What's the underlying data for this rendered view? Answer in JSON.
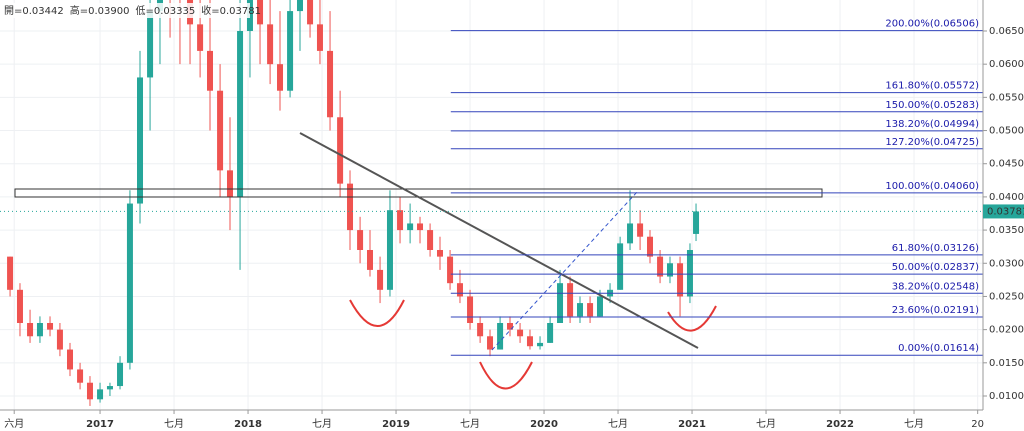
{
  "chart_data": {
    "type": "candlestick",
    "header": [
      "開=0.03442",
      "高=0.03900",
      "低=0.03335",
      "收=0.03781"
    ],
    "up_color": "#26a69a",
    "down_color": "#ef5350",
    "xlim": [
      2016.324,
      2022.966
    ],
    "xticks": [
      {
        "value": 2016.42,
        "label": "六月"
      },
      2017,
      {
        "value": 2017.5,
        "label": "七月"
      },
      2018,
      {
        "value": 2018.5,
        "label": "七月"
      },
      2019,
      {
        "value": 2019.5,
        "label": "七月"
      },
      2020,
      {
        "value": 2020.5,
        "label": "七月"
      },
      2021,
      {
        "value": 2021.5,
        "label": "七月"
      },
      2022,
      {
        "value": 2022.5,
        "label": "七月"
      },
      {
        "value": 2022.93,
        "label": "20"
      }
    ],
    "ylim": [
      0.00789,
      0.06967
    ],
    "yticks": [
      {
        "value": 0.01,
        "label": "0.01000"
      },
      {
        "value": 0.015,
        "label": "0.01500"
      },
      {
        "value": 0.02,
        "label": "0.02000"
      },
      {
        "value": 0.025,
        "label": "0.02500"
      },
      {
        "value": 0.03,
        "label": "0.03000"
      },
      {
        "value": 0.035,
        "label": "0.03500"
      },
      {
        "value": 0.04,
        "label": "0.04000"
      },
      {
        "value": 0.045,
        "label": "0.04500"
      },
      {
        "value": 0.05,
        "label": "0.05000"
      },
      {
        "value": 0.055,
        "label": "0.05500"
      },
      {
        "value": 0.06,
        "label": "0.06000"
      },
      {
        "value": 0.065,
        "label": "0.06500"
      }
    ],
    "last_price": 0.03781,
    "fib_levels": [
      {
        "value": 0.06506,
        "label": "200.00%(0.06506)"
      },
      {
        "value": 0.05572,
        "label": "161.80%(0.05572)"
      },
      {
        "value": 0.05283,
        "label": "150.00%(0.05283)"
      },
      {
        "value": 0.04994,
        "label": "138.20%(0.04994)"
      },
      {
        "value": 0.04725,
        "label": "127.20%(0.04725)"
      },
      {
        "value": 0.0406,
        "label": "100.00%(0.04060)"
      },
      {
        "value": 0.03126,
        "label": "61.80%(0.03126)"
      },
      {
        "value": 0.02837,
        "label": "50.00%(0.02837)"
      },
      {
        "value": 0.02548,
        "label": "38.20%(0.02548)"
      },
      {
        "value": 0.02191,
        "label": "23.60%(0.02191)"
      },
      {
        "value": 0.01614,
        "label": "0.00%(0.01614)"
      }
    ],
    "fib_start": 2019.37,
    "candles": {
      "t": [
        2016.392,
        2016.459,
        2016.527,
        2016.594,
        2016.662,
        2016.729,
        2016.797,
        2016.865,
        2016.932,
        2017.0,
        2017.067,
        2017.135,
        2017.202,
        2017.27,
        2017.338,
        2017.405,
        2017.473,
        2017.54,
        2017.608,
        2017.676,
        2017.743,
        2017.811,
        2017.878,
        2017.946,
        2018.013,
        2018.081,
        2018.149,
        2018.216,
        2018.284,
        2018.351,
        2018.419,
        2018.486,
        2018.554,
        2018.622,
        2018.689,
        2018.757,
        2018.824,
        2018.892,
        2018.959,
        2019.027,
        2019.095,
        2019.162,
        2019.23,
        2019.297,
        2019.365,
        2019.432,
        2019.5,
        2019.568,
        2019.635,
        2019.703,
        2019.77,
        2019.838,
        2019.905,
        2019.973,
        2020.041,
        2020.108,
        2020.176,
        2020.243,
        2020.311,
        2020.378,
        2020.446,
        2020.514,
        2020.581,
        2020.649,
        2020.716,
        2020.784,
        2020.851,
        2020.919,
        2020.986,
        2021.027
      ],
      "open": [
        0.031,
        0.026,
        0.021,
        0.019,
        0.021,
        0.02,
        0.017,
        0.014,
        0.012,
        0.0095,
        0.011,
        0.0115,
        0.015,
        0.039,
        0.058,
        0.068,
        0.075,
        0.072,
        0.07,
        0.066,
        0.062,
        0.056,
        0.044,
        0.04,
        0.065,
        0.07,
        0.066,
        0.06,
        0.056,
        0.068,
        0.07,
        0.066,
        0.062,
        0.052,
        0.042,
        0.035,
        0.032,
        0.029,
        0.026,
        0.038,
        0.035,
        0.036,
        0.035,
        0.032,
        0.031,
        0.027,
        0.025,
        0.021,
        0.019,
        0.017,
        0.021,
        0.02,
        0.019,
        0.0175,
        0.018,
        0.021,
        0.027,
        0.022,
        0.024,
        0.022,
        0.025,
        0.026,
        0.033,
        0.036,
        0.034,
        0.031,
        0.028,
        0.03,
        0.025,
        0.03442
      ],
      "high": [
        0.031,
        0.027,
        0.023,
        0.022,
        0.022,
        0.021,
        0.018,
        0.015,
        0.013,
        0.012,
        0.012,
        0.016,
        0.041,
        0.062,
        0.075,
        0.08,
        0.08,
        0.08,
        0.075,
        0.072,
        0.07,
        0.06,
        0.052,
        0.07,
        0.075,
        0.078,
        0.072,
        0.068,
        0.075,
        0.078,
        0.078,
        0.074,
        0.068,
        0.056,
        0.044,
        0.037,
        0.035,
        0.031,
        0.041,
        0.04,
        0.039,
        0.037,
        0.036,
        0.034,
        0.032,
        0.029,
        0.026,
        0.022,
        0.02,
        0.022,
        0.022,
        0.021,
        0.02,
        0.019,
        0.022,
        0.029,
        0.028,
        0.025,
        0.025,
        0.026,
        0.027,
        0.034,
        0.041,
        0.038,
        0.035,
        0.032,
        0.031,
        0.031,
        0.033,
        0.039
      ],
      "low": [
        0.025,
        0.019,
        0.018,
        0.018,
        0.019,
        0.016,
        0.013,
        0.011,
        0.0085,
        0.009,
        0.01,
        0.011,
        0.014,
        0.036,
        0.05,
        0.06,
        0.064,
        0.06,
        0.06,
        0.058,
        0.05,
        0.04,
        0.035,
        0.029,
        0.058,
        0.06,
        0.057,
        0.053,
        0.055,
        0.062,
        0.064,
        0.06,
        0.05,
        0.04,
        0.032,
        0.03,
        0.028,
        0.024,
        0.025,
        0.033,
        0.033,
        0.033,
        0.031,
        0.029,
        0.026,
        0.024,
        0.02,
        0.018,
        0.016,
        0.017,
        0.019,
        0.018,
        0.017,
        0.017,
        0.018,
        0.021,
        0.021,
        0.021,
        0.021,
        0.022,
        0.024,
        0.026,
        0.032,
        0.032,
        0.03,
        0.027,
        0.027,
        0.022,
        0.024,
        0.03335
      ],
      "close": [
        0.026,
        0.021,
        0.019,
        0.021,
        0.02,
        0.017,
        0.014,
        0.012,
        0.0095,
        0.011,
        0.0115,
        0.015,
        0.039,
        0.058,
        0.068,
        0.075,
        0.072,
        0.07,
        0.066,
        0.062,
        0.056,
        0.044,
        0.04,
        0.065,
        0.07,
        0.066,
        0.06,
        0.056,
        0.068,
        0.07,
        0.066,
        0.062,
        0.052,
        0.042,
        0.035,
        0.032,
        0.029,
        0.026,
        0.038,
        0.035,
        0.036,
        0.035,
        0.032,
        0.031,
        0.027,
        0.025,
        0.021,
        0.019,
        0.017,
        0.021,
        0.02,
        0.019,
        0.0175,
        0.018,
        0.021,
        0.027,
        0.022,
        0.024,
        0.022,
        0.025,
        0.026,
        0.033,
        0.036,
        0.034,
        0.031,
        0.028,
        0.03,
        0.025,
        0.032,
        0.03781
      ]
    }
  }
}
